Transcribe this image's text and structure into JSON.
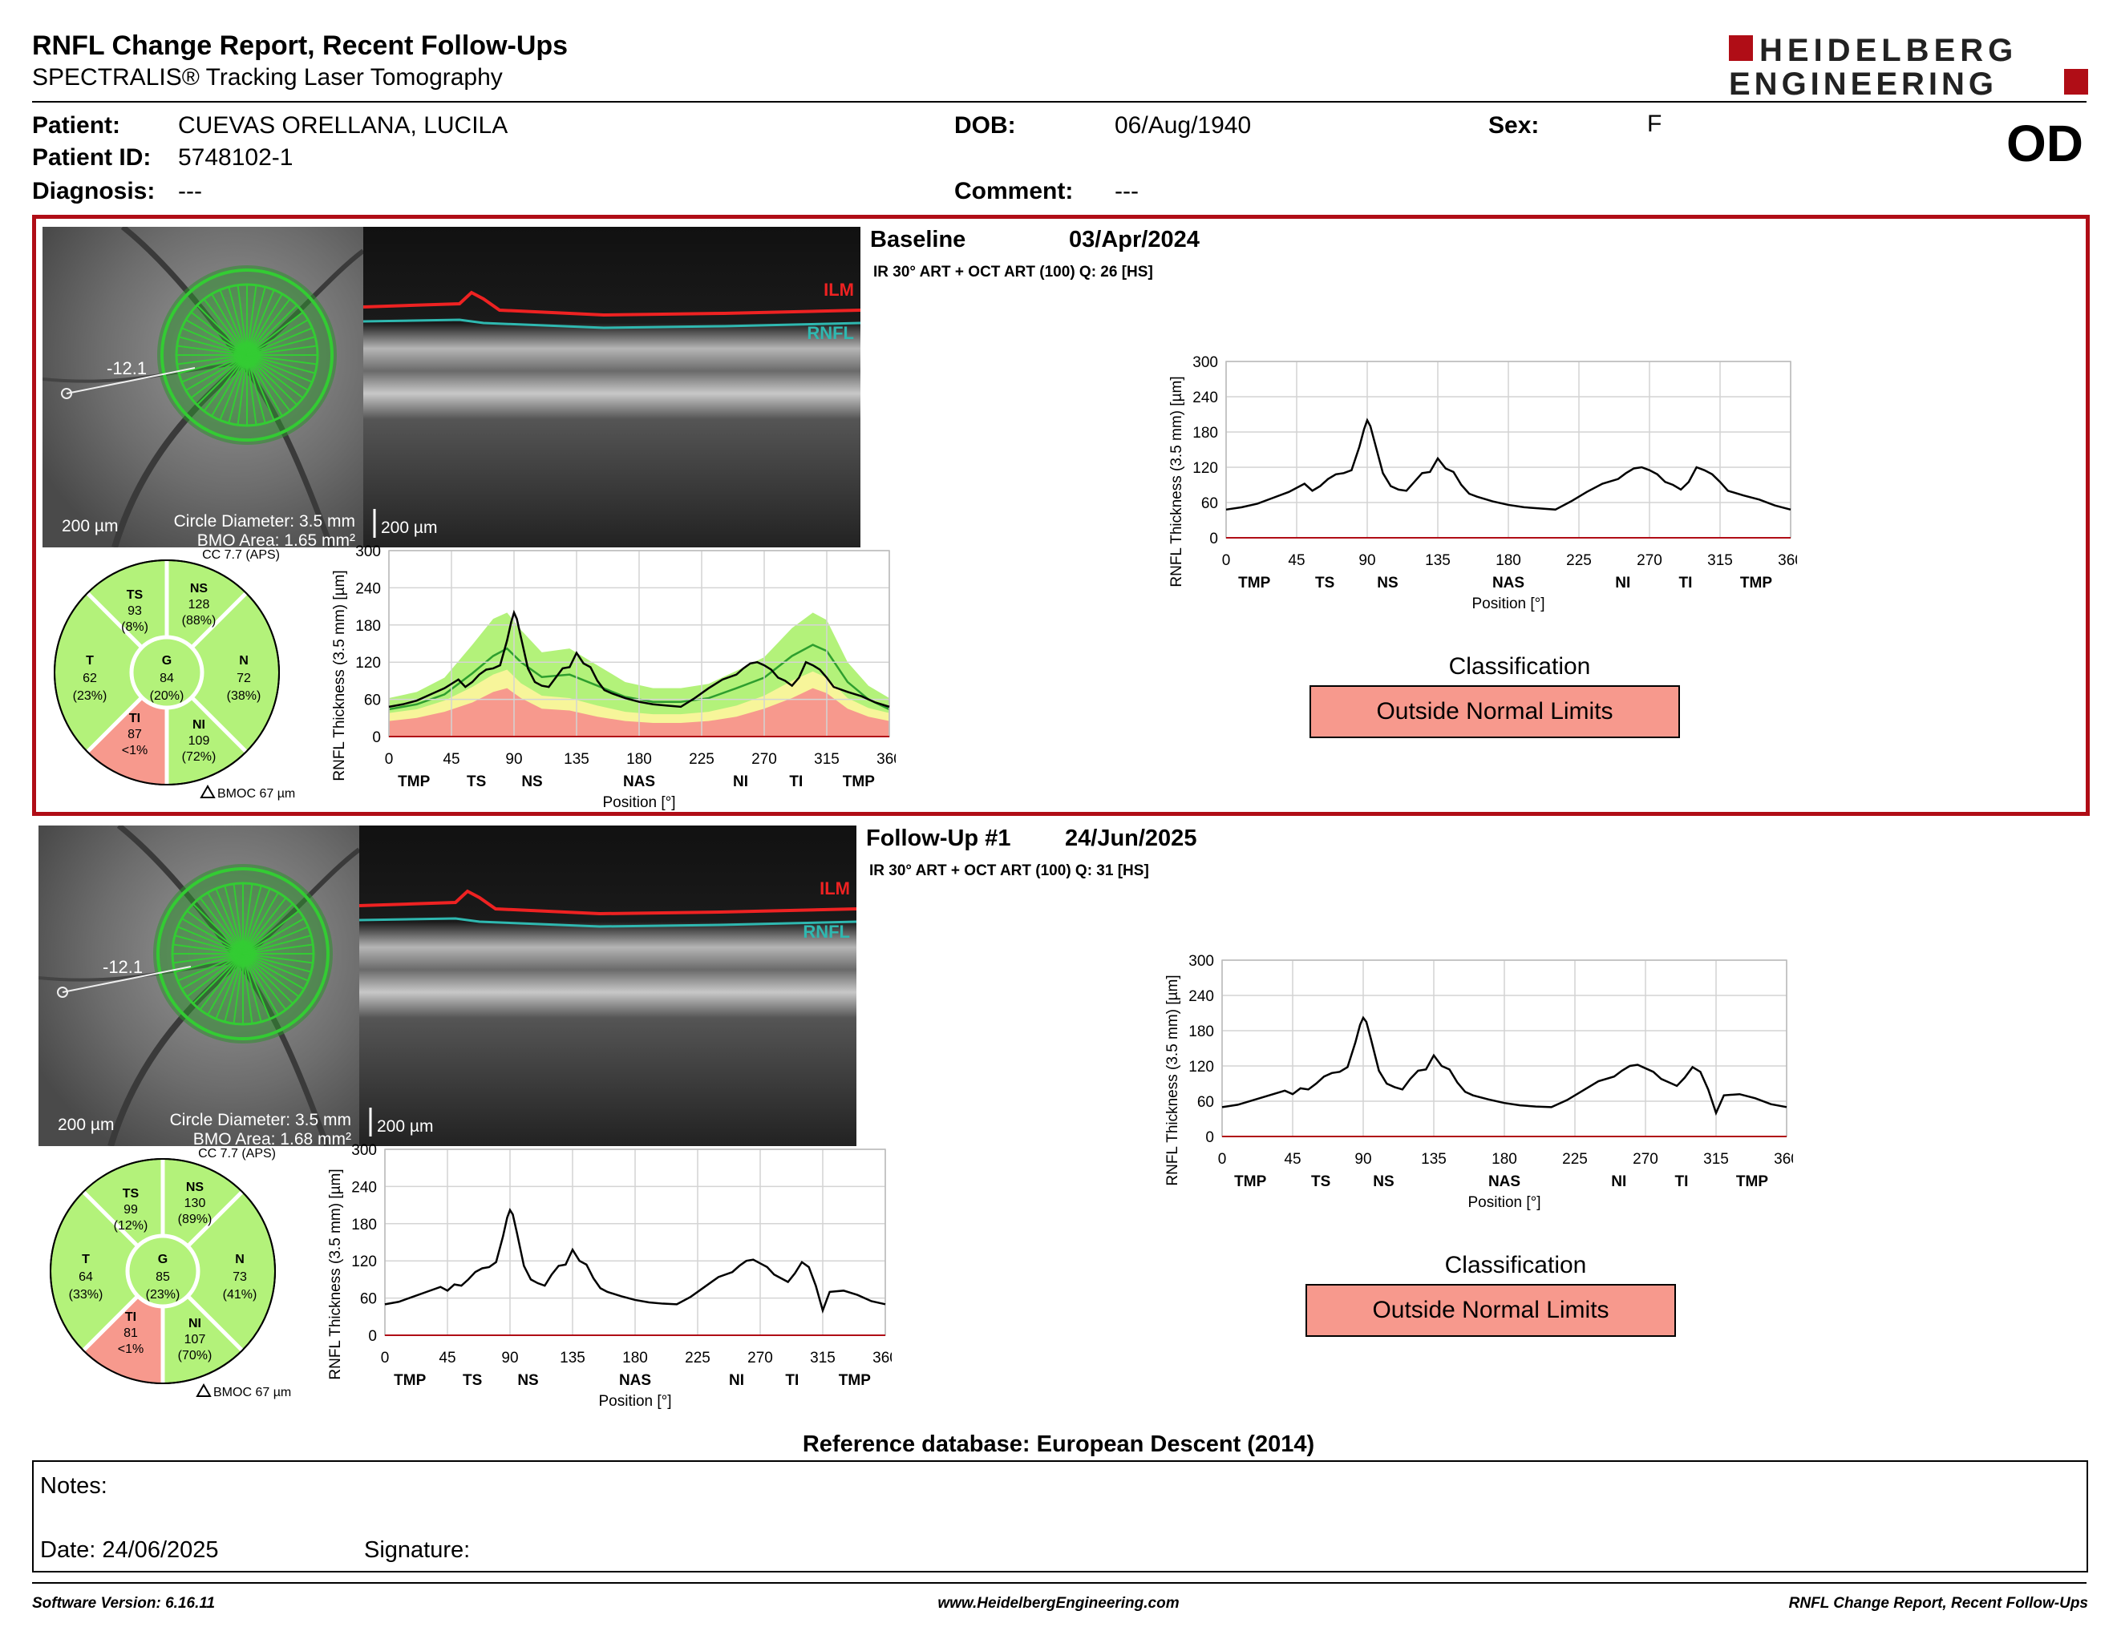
{
  "header": {
    "title": "RNFL Change Report, Recent Follow-Ups",
    "subtitle": "SPECTRALIS® Tracking Laser Tomography",
    "logo_line1": "HEIDELBERG",
    "logo_line2": "ENGINEERING",
    "eye": "OD"
  },
  "patient": {
    "patient_label": "Patient:",
    "patient_value": "CUEVAS ORELLANA, LUCILA",
    "id_label": "Patient ID:",
    "id_value": "5748102-1",
    "diagnosis_label": "Diagnosis:",
    "diagnosis_value": "---",
    "dob_label": "DOB:",
    "dob_value": "06/Aug/1940",
    "comment_label": "Comment:",
    "comment_value": "---",
    "sex_label": "Sex:",
    "sex_value": "F"
  },
  "exams": [
    {
      "label": "Baseline",
      "date": "03/Apr/2024",
      "scan": "IR 30° ART + OCT ART (100) Q: 26 [HS]",
      "fundus": {
        "scale": "200 µm",
        "angle": "-12.1",
        "circle_diameter": "Circle Diameter: 3.5 mm",
        "bmo_area": "BMO Area: 1.65 mm²"
      },
      "oct": {
        "scale": "200 µm",
        "ilm": "ILM",
        "rnfl": "RNFL"
      },
      "sectors": {
        "cc": "CC 7.7 (APS)",
        "bmoc": "BMOC 67 µm",
        "TS": {
          "name": "TS",
          "value": "93",
          "pct": "(8%)"
        },
        "NS": {
          "name": "NS",
          "value": "128",
          "pct": "(88%)"
        },
        "T": {
          "name": "T",
          "value": "62",
          "pct": "(23%)"
        },
        "G": {
          "name": "G",
          "value": "84",
          "pct": "(20%)"
        },
        "N": {
          "name": "N",
          "value": "72",
          "pct": "(38%)"
        },
        "TI": {
          "name": "TI",
          "value": "87",
          "pct": "<1%"
        },
        "NI": {
          "name": "NI",
          "value": "109",
          "pct": "(72%)"
        }
      },
      "classification_title": "Classification",
      "classification": "Outside Normal Limits"
    },
    {
      "label": "Follow-Up #1",
      "date": "24/Jun/2025",
      "scan": "IR 30° ART + OCT ART (100) Q: 31 [HS]",
      "fundus": {
        "scale": "200 µm",
        "angle": "-12.1",
        "circle_diameter": "Circle Diameter: 3.5 mm",
        "bmo_area": "BMO Area: 1.68 mm²"
      },
      "oct": {
        "scale": "200 µm",
        "ilm": "ILM",
        "rnfl": "RNFL"
      },
      "sectors": {
        "cc": "CC 7.7 (APS)",
        "bmoc": "BMOC 67 µm",
        "TS": {
          "name": "TS",
          "value": "99",
          "pct": "(12%)"
        },
        "NS": {
          "name": "NS",
          "value": "130",
          "pct": "(89%)"
        },
        "T": {
          "name": "T",
          "value": "64",
          "pct": "(33%)"
        },
        "G": {
          "name": "G",
          "value": "85",
          "pct": "(23%)"
        },
        "N": {
          "name": "N",
          "value": "73",
          "pct": "(41%)"
        },
        "TI": {
          "name": "TI",
          "value": "81",
          "pct": "<1%"
        },
        "NI": {
          "name": "NI",
          "value": "107",
          "pct": "(70%)"
        }
      },
      "classification_title": "Classification",
      "classification": "Outside Normal Limits"
    }
  ],
  "reference_db": "Reference database: European Descent (2014)",
  "notes": {
    "notes_label": "Notes:",
    "date_label": "Date: 24/06/2025",
    "signature_label": "Signature:"
  },
  "footer": {
    "software": "Software Version: 6.16.11",
    "website": "www.HeidelbergEngineering.com",
    "report": "RNFL Change Report, Recent Follow-Ups"
  },
  "colors": {
    "frame_red": "#b00d16",
    "within_normal": "#b3f27a",
    "borderline": "#f7f59a",
    "outside": "#f7998d",
    "circle_green": "#34b233"
  },
  "chart_data": [
    {
      "type": "line",
      "name": "baseline-sector-profile",
      "xlabel": "Position [°]",
      "ylabel": "RNFL Thickness (3.5 mm) [µm]",
      "xlim": [
        0,
        360
      ],
      "ylim": [
        0,
        300
      ],
      "xticks": [
        0,
        45,
        90,
        135,
        180,
        225,
        270,
        315,
        360
      ],
      "yticks": [
        0,
        60,
        120,
        180,
        240,
        300
      ],
      "sector_labels": [
        [
          "TMP",
          18
        ],
        [
          "TS",
          63
        ],
        [
          "NS",
          103
        ],
        [
          "NAS",
          180
        ],
        [
          "NI",
          253
        ],
        [
          "TI",
          293
        ],
        [
          "TMP",
          338
        ]
      ],
      "x": [
        0,
        10,
        20,
        30,
        40,
        50,
        55,
        60,
        65,
        70,
        75,
        80,
        85,
        88,
        90,
        92,
        95,
        100,
        105,
        110,
        115,
        120,
        125,
        130,
        135,
        140,
        145,
        150,
        155,
        160,
        170,
        180,
        190,
        200,
        210,
        220,
        230,
        240,
        250,
        255,
        260,
        265,
        270,
        275,
        280,
        285,
        290,
        295,
        300,
        305,
        310,
        315,
        320,
        330,
        340,
        350,
        360
      ],
      "values": [
        48,
        52,
        58,
        68,
        78,
        92,
        80,
        88,
        100,
        108,
        110,
        115,
        155,
        185,
        200,
        190,
        160,
        110,
        88,
        82,
        80,
        95,
        110,
        112,
        135,
        118,
        112,
        90,
        75,
        70,
        62,
        56,
        52,
        50,
        48,
        62,
        78,
        92,
        100,
        110,
        118,
        120,
        115,
        108,
        95,
        90,
        82,
        95,
        120,
        115,
        108,
        95,
        80,
        72,
        65,
        55,
        48
      ],
      "normal_bands": {
        "x": [
          0,
          20,
          40,
          60,
          75,
          85,
          95,
          110,
          130,
          150,
          170,
          190,
          210,
          230,
          250,
          270,
          290,
          305,
          315,
          330,
          345,
          360
        ],
        "outside_upper": [
          25,
          30,
          40,
          55,
          72,
          78,
          62,
          45,
          42,
          32,
          25,
          22,
          22,
          25,
          32,
          45,
          62,
          78,
          70,
          45,
          32,
          25
        ],
        "borderline_upper": [
          38,
          44,
          58,
          80,
          100,
          108,
          86,
          66,
          62,
          50,
          40,
          36,
          36,
          40,
          50,
          66,
          90,
          105,
          95,
          62,
          46,
          38
        ],
        "within_upper": [
          62,
          72,
          95,
          148,
          190,
          200,
          172,
          136,
          142,
          115,
          88,
          78,
          78,
          85,
          106,
          128,
          175,
          200,
          188,
          120,
          82,
          62
        ],
        "normal_mean": [
          44,
          52,
          68,
          102,
          130,
          142,
          120,
          96,
          100,
          82,
          64,
          56,
          56,
          62,
          78,
          95,
          130,
          148,
          138,
          88,
          60,
          44
        ]
      }
    },
    {
      "type": "line",
      "name": "baseline-trend",
      "xlabel": "Position [°]",
      "ylabel": "RNFL Thickness (3.5 mm) [µm]",
      "xlim": [
        0,
        360
      ],
      "ylim": [
        0,
        300
      ],
      "xticks": [
        0,
        45,
        90,
        135,
        180,
        225,
        270,
        315,
        360
      ],
      "yticks": [
        0,
        60,
        120,
        180,
        240,
        300
      ],
      "sector_labels": [
        [
          "TMP",
          18
        ],
        [
          "TS",
          63
        ],
        [
          "NS",
          103
        ],
        [
          "NAS",
          180
        ],
        [
          "NI",
          253
        ],
        [
          "TI",
          293
        ],
        [
          "TMP",
          338
        ]
      ],
      "x": [
        0,
        10,
        20,
        30,
        40,
        50,
        55,
        60,
        65,
        70,
        75,
        80,
        85,
        88,
        90,
        92,
        95,
        100,
        105,
        110,
        115,
        120,
        125,
        130,
        135,
        140,
        145,
        150,
        155,
        160,
        170,
        180,
        190,
        200,
        210,
        220,
        230,
        240,
        250,
        255,
        260,
        265,
        270,
        275,
        280,
        285,
        290,
        295,
        300,
        305,
        310,
        315,
        320,
        330,
        340,
        350,
        360
      ],
      "values": [
        48,
        52,
        58,
        68,
        78,
        92,
        80,
        88,
        100,
        108,
        110,
        115,
        155,
        185,
        200,
        190,
        160,
        110,
        88,
        82,
        80,
        95,
        110,
        112,
        135,
        118,
        112,
        90,
        75,
        70,
        62,
        56,
        52,
        50,
        48,
        62,
        78,
        92,
        100,
        110,
        118,
        120,
        115,
        108,
        95,
        90,
        82,
        95,
        120,
        115,
        108,
        95,
        80,
        72,
        65,
        55,
        48
      ]
    },
    {
      "type": "line",
      "name": "followup-sector-profile",
      "xlabel": "Position [°]",
      "ylabel": "RNFL Thickness (3.5 mm) [µm]",
      "xlim": [
        0,
        360
      ],
      "ylim": [
        0,
        300
      ],
      "xticks": [
        0,
        45,
        90,
        135,
        180,
        225,
        270,
        315,
        360
      ],
      "yticks": [
        0,
        60,
        120,
        180,
        240,
        300
      ],
      "sector_labels": [
        [
          "TMP",
          18
        ],
        [
          "TS",
          63
        ],
        [
          "NS",
          103
        ],
        [
          "NAS",
          180
        ],
        [
          "NI",
          253
        ],
        [
          "TI",
          293
        ],
        [
          "TMP",
          338
        ]
      ],
      "x": [
        0,
        10,
        20,
        30,
        40,
        45,
        50,
        55,
        60,
        65,
        70,
        75,
        80,
        85,
        88,
        90,
        92,
        95,
        100,
        105,
        110,
        115,
        120,
        125,
        130,
        135,
        140,
        145,
        150,
        155,
        160,
        170,
        180,
        190,
        200,
        210,
        220,
        230,
        240,
        250,
        255,
        260,
        265,
        270,
        275,
        280,
        285,
        290,
        295,
        300,
        305,
        310,
        315,
        320,
        330,
        340,
        350,
        360
      ],
      "values": [
        50,
        54,
        62,
        70,
        78,
        72,
        82,
        80,
        90,
        102,
        108,
        110,
        118,
        160,
        190,
        202,
        195,
        165,
        112,
        90,
        84,
        80,
        98,
        112,
        114,
        138,
        120,
        114,
        92,
        76,
        70,
        63,
        57,
        53,
        51,
        50,
        62,
        78,
        94,
        102,
        112,
        120,
        122,
        116,
        110,
        98,
        92,
        86,
        100,
        118,
        110,
        80,
        40,
        70,
        72,
        65,
        55,
        50
      ]
    },
    {
      "type": "line",
      "name": "followup-trend",
      "xlabel": "Position [°]",
      "ylabel": "RNFL Thickness (3.5 mm) [µm]",
      "xlim": [
        0,
        360
      ],
      "ylim": [
        0,
        300
      ],
      "xticks": [
        0,
        45,
        90,
        135,
        180,
        225,
        270,
        315,
        360
      ],
      "yticks": [
        0,
        60,
        120,
        180,
        240,
        300
      ],
      "sector_labels": [
        [
          "TMP",
          18
        ],
        [
          "TS",
          63
        ],
        [
          "NS",
          103
        ],
        [
          "NAS",
          180
        ],
        [
          "NI",
          253
        ],
        [
          "TI",
          293
        ],
        [
          "TMP",
          338
        ]
      ],
      "x": [
        0,
        10,
        20,
        30,
        40,
        45,
        50,
        55,
        60,
        65,
        70,
        75,
        80,
        85,
        88,
        90,
        92,
        95,
        100,
        105,
        110,
        115,
        120,
        125,
        130,
        135,
        140,
        145,
        150,
        155,
        160,
        170,
        180,
        190,
        200,
        210,
        220,
        230,
        240,
        250,
        255,
        260,
        265,
        270,
        275,
        280,
        285,
        290,
        295,
        300,
        305,
        310,
        315,
        320,
        330,
        340,
        350,
        360
      ],
      "values": [
        50,
        54,
        62,
        70,
        78,
        72,
        82,
        80,
        90,
        102,
        108,
        110,
        118,
        160,
        190,
        202,
        195,
        165,
        112,
        90,
        84,
        80,
        98,
        112,
        114,
        138,
        120,
        114,
        92,
        76,
        70,
        63,
        57,
        53,
        51,
        50,
        62,
        78,
        94,
        102,
        112,
        120,
        122,
        116,
        110,
        98,
        92,
        86,
        100,
        118,
        110,
        80,
        40,
        70,
        72,
        65,
        55,
        50
      ]
    }
  ]
}
